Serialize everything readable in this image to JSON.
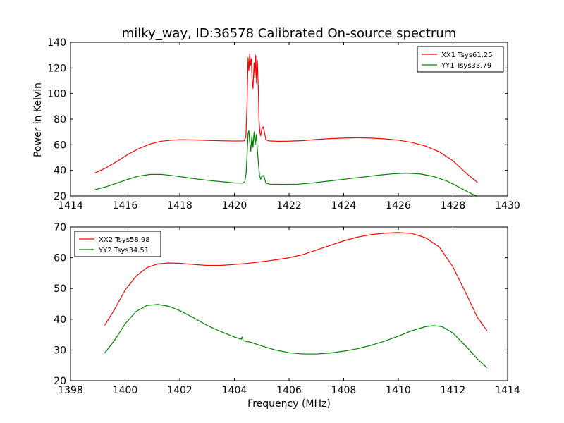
{
  "chart_data": {
    "title": "milky_way, ID:36578 Calibrated On-source spectrum",
    "xlabel": "Frequency (MHz)",
    "ylabel": "Power in Kelvin",
    "panels": [
      {
        "type": "line",
        "xlim": [
          1414,
          1430
        ],
        "ylim": [
          20,
          140
        ],
        "xticks": [
          1414,
          1416,
          1418,
          1420,
          1422,
          1424,
          1426,
          1428,
          1430
        ],
        "yticks": [
          20,
          40,
          60,
          80,
          100,
          120,
          140
        ],
        "legend_position": "top-right",
        "series": [
          {
            "name": "XX1 Tsys61.25",
            "color": "#ff0000",
            "points": [
              [
                1414.9,
                38
              ],
              [
                1415.3,
                42
              ],
              [
                1415.7,
                47
              ],
              [
                1416.1,
                52.5
              ],
              [
                1416.5,
                57
              ],
              [
                1416.9,
                60.5
              ],
              [
                1417.3,
                62.7
              ],
              [
                1417.7,
                63.6
              ],
              [
                1418.1,
                64
              ],
              [
                1418.5,
                63.8
              ],
              [
                1419.0,
                63.4
              ],
              [
                1419.5,
                63.1
              ],
              [
                1420.0,
                62.9
              ],
              [
                1420.35,
                63
              ],
              [
                1420.42,
                66
              ],
              [
                1420.46,
                90
              ],
              [
                1420.5,
                128
              ],
              [
                1420.53,
                118
              ],
              [
                1420.56,
                131
              ],
              [
                1420.59,
                122
              ],
              [
                1420.62,
                127
              ],
              [
                1420.65,
                110
              ],
              [
                1420.68,
                104
              ],
              [
                1420.72,
                124
              ],
              [
                1420.75,
                112
              ],
              [
                1420.78,
                130
              ],
              [
                1420.81,
                108
              ],
              [
                1420.84,
                126
              ],
              [
                1420.88,
                100
              ],
              [
                1420.9,
                80
              ],
              [
                1420.93,
                70
              ],
              [
                1420.96,
                67
              ],
              [
                1421.0,
                72
              ],
              [
                1421.05,
                74
              ],
              [
                1421.1,
                70
              ],
              [
                1421.15,
                64
              ],
              [
                1421.25,
                63
              ],
              [
                1421.6,
                62.7
              ],
              [
                1422.0,
                62.8
              ],
              [
                1422.5,
                63.2
              ],
              [
                1423.0,
                64.1
              ],
              [
                1423.5,
                64.8
              ],
              [
                1424.0,
                65.2
              ],
              [
                1424.5,
                65.5
              ],
              [
                1425.0,
                65.2
              ],
              [
                1425.5,
                64.6
              ],
              [
                1426.0,
                63.6
              ],
              [
                1426.5,
                61.8
              ],
              [
                1427.0,
                59
              ],
              [
                1427.5,
                54.5
              ],
              [
                1428.0,
                47.5
              ],
              [
                1428.5,
                37.5
              ],
              [
                1428.9,
                30.5
              ]
            ]
          },
          {
            "name": "YY1 Tsys33.79",
            "color": "#008000",
            "points": [
              [
                1414.9,
                25
              ],
              [
                1415.3,
                27.2
              ],
              [
                1415.7,
                30
              ],
              [
                1416.1,
                33
              ],
              [
                1416.5,
                35.5
              ],
              [
                1416.9,
                36.8
              ],
              [
                1417.3,
                36.9
              ],
              [
                1417.7,
                36
              ],
              [
                1418.1,
                34.8
              ],
              [
                1418.5,
                33.6
              ],
              [
                1419.0,
                32.3
              ],
              [
                1419.5,
                31.2
              ],
              [
                1420.0,
                30.2
              ],
              [
                1420.3,
                30
              ],
              [
                1420.38,
                31
              ],
              [
                1420.43,
                38
              ],
              [
                1420.47,
                55
              ],
              [
                1420.5,
                69
              ],
              [
                1420.53,
                71
              ],
              [
                1420.56,
                62
              ],
              [
                1420.6,
                55
              ],
              [
                1420.64,
                67
              ],
              [
                1420.68,
                58
              ],
              [
                1420.72,
                70
              ],
              [
                1420.76,
                60
              ],
              [
                1420.8,
                68
              ],
              [
                1420.84,
                56
              ],
              [
                1420.88,
                45
              ],
              [
                1420.92,
                36
              ],
              [
                1420.96,
                33
              ],
              [
                1421.0,
                35
              ],
              [
                1421.05,
                36
              ],
              [
                1421.1,
                34
              ],
              [
                1421.15,
                30
              ],
              [
                1421.3,
                29.2
              ],
              [
                1421.8,
                29
              ],
              [
                1422.3,
                29.2
              ],
              [
                1422.8,
                30
              ],
              [
                1423.3,
                31.3
              ],
              [
                1423.8,
                32.5
              ],
              [
                1424.3,
                33.8
              ],
              [
                1424.8,
                35
              ],
              [
                1425.3,
                36.3
              ],
              [
                1425.8,
                37.3
              ],
              [
                1426.3,
                37.8
              ],
              [
                1426.8,
                37.2
              ],
              [
                1427.3,
                35.2
              ],
              [
                1427.8,
                31.5
              ],
              [
                1428.3,
                26
              ],
              [
                1428.7,
                21.5
              ],
              [
                1428.95,
                19.5
              ]
            ]
          }
        ]
      },
      {
        "type": "line",
        "xlim": [
          1398,
          1414
        ],
        "ylim": [
          20,
          70
        ],
        "xticks": [
          1398,
          1400,
          1402,
          1404,
          1406,
          1408,
          1410,
          1412,
          1414
        ],
        "yticks": [
          20,
          30,
          40,
          50,
          60,
          70
        ],
        "legend_position": "top-left",
        "series": [
          {
            "name": "XX2 Tsys58.98",
            "color": "#ff0000",
            "points": [
              [
                1399.25,
                38
              ],
              [
                1399.6,
                43
              ],
              [
                1400.0,
                49.5
              ],
              [
                1400.4,
                54
              ],
              [
                1400.8,
                56.8
              ],
              [
                1401.2,
                58
              ],
              [
                1401.6,
                58.3
              ],
              [
                1402.0,
                58.2
              ],
              [
                1402.5,
                57.8
              ],
              [
                1403.0,
                57.5
              ],
              [
                1403.5,
                57.5
              ],
              [
                1404.0,
                57.8
              ],
              [
                1404.5,
                58.2
              ],
              [
                1405.0,
                58.7
              ],
              [
                1405.5,
                59.3
              ],
              [
                1406.0,
                60
              ],
              [
                1406.5,
                61
              ],
              [
                1407.0,
                62.5
              ],
              [
                1407.5,
                64
              ],
              [
                1408.0,
                65.5
              ],
              [
                1408.5,
                66.7
              ],
              [
                1409.0,
                67.5
              ],
              [
                1409.5,
                68
              ],
              [
                1410.0,
                68.2
              ],
              [
                1410.5,
                67.9
              ],
              [
                1411.0,
                66.5
              ],
              [
                1411.5,
                63.5
              ],
              [
                1412.0,
                57
              ],
              [
                1412.5,
                48
              ],
              [
                1412.9,
                40.5
              ],
              [
                1413.25,
                36.2
              ]
            ]
          },
          {
            "name": "YY2 Tsys34.51",
            "color": "#008000",
            "points": [
              [
                1399.25,
                29
              ],
              [
                1399.6,
                33
              ],
              [
                1400.0,
                38.5
              ],
              [
                1400.4,
                42.5
              ],
              [
                1400.8,
                44.5
              ],
              [
                1401.2,
                44.8
              ],
              [
                1401.6,
                44.2
              ],
              [
                1402.0,
                42.8
              ],
              [
                1402.5,
                40.5
              ],
              [
                1403.0,
                38
              ],
              [
                1403.5,
                36
              ],
              [
                1404.0,
                34.2
              ],
              [
                1404.25,
                33.5
              ],
              [
                1404.28,
                34.2
              ],
              [
                1404.32,
                33
              ],
              [
                1404.6,
                32.5
              ],
              [
                1405.0,
                31.3
              ],
              [
                1405.5,
                30
              ],
              [
                1406.0,
                29.1
              ],
              [
                1406.5,
                28.7
              ],
              [
                1407.0,
                28.7
              ],
              [
                1407.5,
                29
              ],
              [
                1408.0,
                29.6
              ],
              [
                1408.5,
                30.4
              ],
              [
                1409.0,
                31.5
              ],
              [
                1409.5,
                32.9
              ],
              [
                1410.0,
                34.5
              ],
              [
                1410.5,
                36.3
              ],
              [
                1411.0,
                37.6
              ],
              [
                1411.3,
                37.9
              ],
              [
                1411.6,
                37.6
              ],
              [
                1412.0,
                35.5
              ],
              [
                1412.5,
                31
              ],
              [
                1412.9,
                27
              ],
              [
                1413.25,
                24.2
              ]
            ]
          }
        ]
      }
    ]
  }
}
